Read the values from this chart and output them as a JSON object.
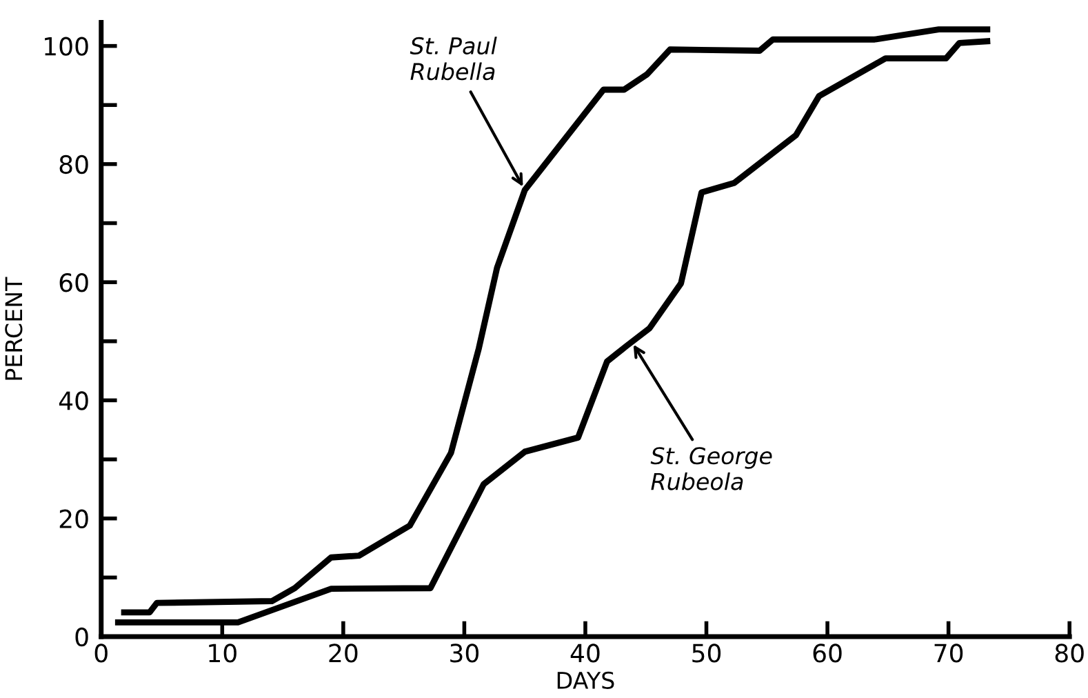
{
  "chart_data": {
    "type": "line",
    "xlabel": "DAYS",
    "ylabel": "PERCENT",
    "xlim": [
      0,
      80
    ],
    "ylim": [
      0,
      104
    ],
    "xticks": [
      0,
      10,
      20,
      30,
      40,
      50,
      60,
      70,
      80
    ],
    "yticks": [
      0,
      {
        "value": 10,
        "label": null
      },
      20,
      {
        "value": 30,
        "label": null
      },
      40,
      {
        "value": 50,
        "label": null
      },
      60,
      {
        "value": 70,
        "label": null
      },
      80,
      {
        "value": 90,
        "label": null
      },
      100
    ],
    "grid": false,
    "legend": false,
    "marker": "none",
    "line_style": "solid",
    "series": [
      {
        "color": "#000000",
        "x": [
          1.9,
          4.0,
          4.6,
          14.1,
          16.0,
          19.0,
          21.3,
          25.5,
          28.9,
          31.2,
          32.7,
          35.0,
          41.5,
          43.2,
          45.1,
          47.0,
          54.4,
          55.5,
          63.9,
          69.2,
          73.2
        ],
        "values": [
          4.1,
          4.1,
          5.7,
          6.0,
          8.2,
          13.4,
          13.7,
          18.8,
          31.1,
          48.8,
          62.4,
          75.6,
          92.6,
          92.6,
          95.2,
          99.4,
          99.2,
          101.1,
          101.1,
          102.8,
          102.8
        ]
      },
      {
        "color": "#000000",
        "x": [
          1.4,
          11.3,
          19.0,
          27.2,
          31.6,
          35.0,
          39.4,
          41.8,
          43.4,
          45.3,
          47.9,
          49.6,
          52.3,
          57.4,
          59.3,
          64.8,
          69.8,
          70.9,
          73.2
        ],
        "values": [
          2.4,
          2.4,
          8.1,
          8.2,
          25.8,
          31.3,
          33.7,
          46.6,
          49.2,
          52.2,
          59.8,
          75.2,
          76.8,
          84.9,
          91.5,
          97.9,
          97.9,
          100.5,
          100.8
        ]
      }
    ],
    "annotations": [
      {
        "text": "St. Paul\nRubella",
        "x": 35.0,
        "y": 75.6
      },
      {
        "text": "St. George\nRubeola",
        "x": 43.8,
        "y": 50.0
      }
    ]
  }
}
